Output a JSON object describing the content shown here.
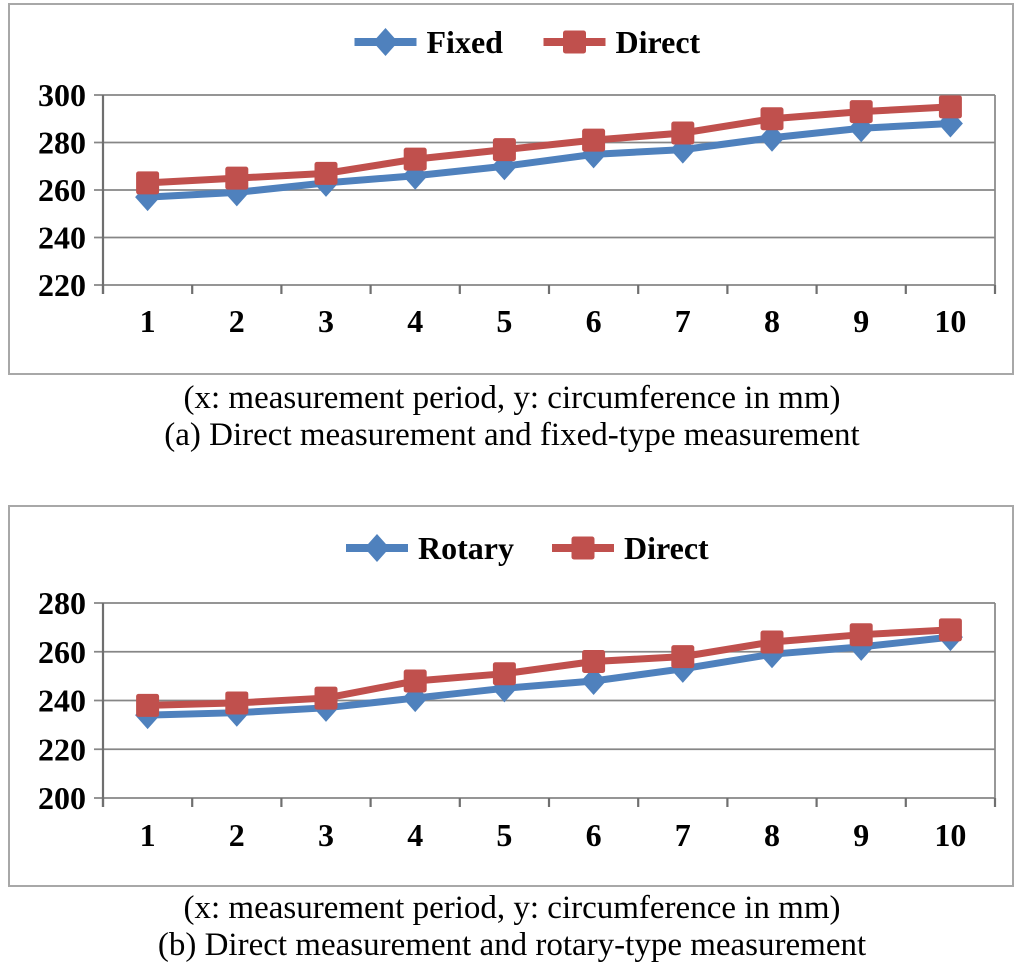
{
  "figure": {
    "background": "#ffffff",
    "description_visible_text_only": true
  },
  "colors": {
    "series_blue": "#4F81BD",
    "series_red": "#C0504D",
    "grid": "#868686",
    "axis": "#6f6f6f",
    "frame_border": "#a8a8a8",
    "text": "#000000"
  },
  "panels": [
    {
      "id": "a",
      "legend_labels": [
        "Fixed",
        "Direct"
      ],
      "caption_line1": "(x: measurement period, y: circumference in mm)",
      "caption_line2": "(a) Direct measurement and fixed-type measurement"
    },
    {
      "id": "b",
      "legend_labels": [
        "Rotary",
        "Direct"
      ],
      "caption_line1": "(x: measurement period, y: circumference in mm)",
      "caption_line2": "(b) Direct measurement and rotary-type measurement"
    }
  ],
  "chart_data": [
    {
      "type": "line",
      "panel": "a",
      "title": "",
      "xlabel": "measurement period",
      "ylabel": "circumference in mm",
      "x": [
        1,
        2,
        3,
        4,
        5,
        6,
        7,
        8,
        9,
        10
      ],
      "xticklabels": [
        "1",
        "2",
        "3",
        "4",
        "5",
        "6",
        "7",
        "8",
        "9",
        "10"
      ],
      "ylim": [
        220,
        300
      ],
      "yticks": [
        300,
        280,
        260,
        240,
        220
      ],
      "grid": true,
      "legend_position": "top-center",
      "series": [
        {
          "name": "Fixed",
          "color": "#4F81BD",
          "marker": "diamond",
          "values": [
            257,
            259,
            263,
            266,
            270,
            275,
            277,
            282,
            286,
            288
          ]
        },
        {
          "name": "Direct",
          "color": "#C0504D",
          "marker": "square",
          "values": [
            263,
            265,
            267,
            273,
            277,
            281,
            284,
            290,
            293,
            295
          ]
        }
      ]
    },
    {
      "type": "line",
      "panel": "b",
      "title": "",
      "xlabel": "measurement period",
      "ylabel": "circumference in mm",
      "x": [
        1,
        2,
        3,
        4,
        5,
        6,
        7,
        8,
        9,
        10
      ],
      "xticklabels": [
        "1",
        "2",
        "3",
        "4",
        "5",
        "6",
        "7",
        "8",
        "9",
        "10"
      ],
      "ylim": [
        200,
        280
      ],
      "yticks": [
        280,
        260,
        240,
        220,
        200
      ],
      "grid": true,
      "legend_position": "top-center",
      "series": [
        {
          "name": "Rotary",
          "color": "#4F81BD",
          "marker": "diamond",
          "values": [
            234,
            235,
            237,
            241,
            245,
            248,
            253,
            259,
            262,
            266
          ]
        },
        {
          "name": "Direct",
          "color": "#C0504D",
          "marker": "square",
          "values": [
            238,
            239,
            241,
            248,
            251,
            256,
            258,
            264,
            267,
            269
          ]
        }
      ]
    }
  ]
}
